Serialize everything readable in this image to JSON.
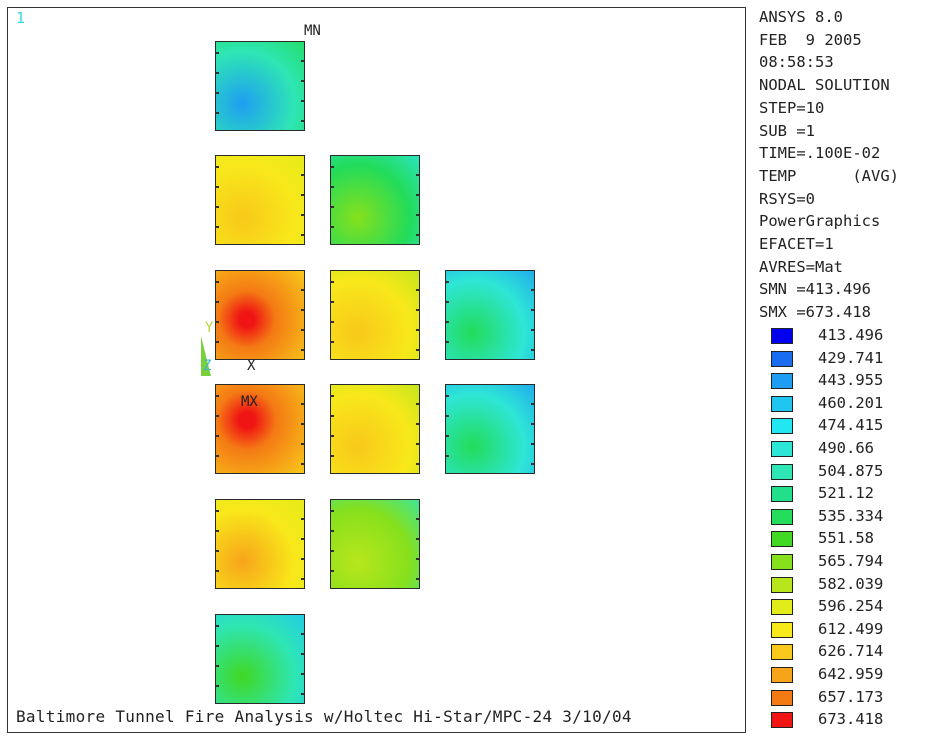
{
  "viewport": {
    "window_number": "1",
    "label_mn": "MN",
    "label_mx": "MX",
    "triad": {
      "y": "Y",
      "z": "Z",
      "x": "X"
    },
    "caption": "Baltimore Tunnel Fire Analysis w/Holtec Hi-Star/MPC-24 3/10/04"
  },
  "info": {
    "lines": [
      "ANSYS 8.0",
      "FEB  9 2005",
      "08:58:53",
      "NODAL SOLUTION",
      "STEP=10",
      "SUB =1",
      "TIME=.100E-02",
      "TEMP      (AVG)",
      "RSYS=0",
      "PowerGraphics",
      "EFACET=1",
      "AVRES=Mat",
      "SMN =413.496",
      "SMX =673.418"
    ]
  },
  "legend": {
    "entries": [
      {
        "value": "413.496",
        "color": "#0000ee"
      },
      {
        "value": "429.741",
        "color": "#1a6cf0"
      },
      {
        "value": "443.955",
        "color": "#1e9ef2"
      },
      {
        "value": "460.201",
        "color": "#20c6f0"
      },
      {
        "value": "474.415",
        "color": "#22e6f0"
      },
      {
        "value": "490.66",
        "color": "#2ee6d6"
      },
      {
        "value": "504.875",
        "color": "#2ee6b4"
      },
      {
        "value": "521.12",
        "color": "#22e08a"
      },
      {
        "value": "535.334",
        "color": "#22dc5a"
      },
      {
        "value": "551.58",
        "color": "#40d822"
      },
      {
        "value": "565.794",
        "color": "#86e01c"
      },
      {
        "value": "582.039",
        "color": "#b8e61c"
      },
      {
        "value": "596.254",
        "color": "#e2ec18"
      },
      {
        "value": "612.499",
        "color": "#f8e81a"
      },
      {
        "value": "626.714",
        "color": "#f8c81a"
      },
      {
        "value": "642.959",
        "color": "#f8a41a"
      },
      {
        "value": "657.173",
        "color": "#f47a14"
      },
      {
        "value": "673.418",
        "color": "#f01414"
      }
    ]
  },
  "cells": [
    {
      "id": "cell-r1c1",
      "colors": [
        "#1e9ef2",
        "#2ee6b4",
        "#22dc5a"
      ]
    },
    {
      "id": "cell-r2c1",
      "colors": [
        "#f8c81a",
        "#f8e81a",
        "#e2ec18"
      ]
    },
    {
      "id": "cell-r2c2",
      "colors": [
        "#86e01c",
        "#22dc5a",
        "#2ee6d6"
      ]
    },
    {
      "id": "cell-r3c1",
      "colors": [
        "#f01414",
        "#f47a14",
        "#f8c81a"
      ]
    },
    {
      "id": "cell-r3c2",
      "colors": [
        "#f8c81a",
        "#f8e81a",
        "#b8e61c"
      ]
    },
    {
      "id": "cell-r3c3",
      "colors": [
        "#22dc5a",
        "#2ee6d6",
        "#1e9ef2"
      ]
    },
    {
      "id": "cell-r4c1",
      "colors": [
        "#f01414",
        "#f47a14",
        "#f8c81a"
      ]
    },
    {
      "id": "cell-r4c2",
      "colors": [
        "#f8c81a",
        "#f8e81a",
        "#b8e61c"
      ]
    },
    {
      "id": "cell-r4c3",
      "colors": [
        "#22dc5a",
        "#2ee6d6",
        "#1e9ef2"
      ]
    },
    {
      "id": "cell-r5c1",
      "colors": [
        "#f8a41a",
        "#f8e81a",
        "#e2ec18"
      ]
    },
    {
      "id": "cell-r5c2",
      "colors": [
        "#b8e61c",
        "#86e01c",
        "#2ee6b4"
      ]
    },
    {
      "id": "cell-r6c1",
      "colors": [
        "#40d822",
        "#2ee6b4",
        "#20c6f0"
      ]
    }
  ]
}
